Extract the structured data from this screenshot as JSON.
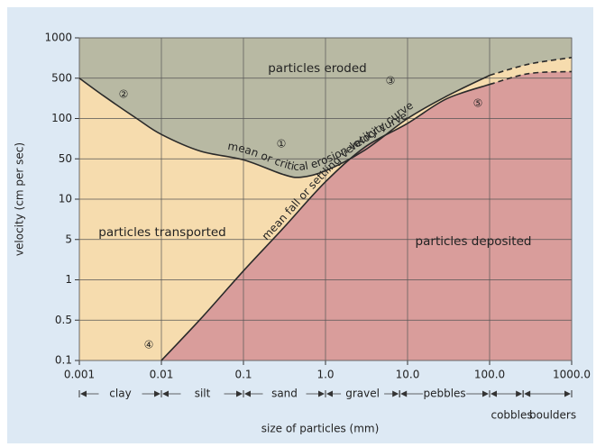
{
  "chart_data": {
    "type": "hjulstrom",
    "xlabel": "size of particles (mm)",
    "ylabel": "velocity (cm per sec)",
    "xscale": "log",
    "yscale": "log",
    "xlim": [
      0.001,
      1000
    ],
    "ylim": [
      0.1,
      1000
    ],
    "xticks": [
      0.001,
      0.01,
      0.1,
      {
        "value": 1,
        "label": "1.0"
      },
      {
        "value": 10,
        "label": "10.0"
      },
      {
        "value": 100,
        "label": "100.0"
      },
      {
        "value": 1000,
        "label": "1000.0"
      }
    ],
    "yticks": [
      1000,
      500,
      100,
      50,
      10,
      5,
      1,
      0.5,
      0.1
    ],
    "grid": true,
    "dash_from": 100,
    "regions": [
      {
        "name": "particles eroded",
        "color": "#b8b9a3"
      },
      {
        "name": "particles transported",
        "color": "#f6dcae"
      },
      {
        "name": "particles deposited",
        "color": "#d99d9b"
      }
    ],
    "series": [
      {
        "name": "mean or critical erosion velocity curve",
        "color": "#2a2a2a",
        "x": [
          0.001,
          0.002,
          0.005,
          0.01,
          0.03,
          0.1,
          0.3,
          0.5,
          1,
          3,
          10,
          30,
          100,
          300,
          1000
        ],
        "values": [
          500,
          244,
          100,
          76,
          57,
          48,
          27,
          24,
          31,
          58,
          100,
          244,
          525,
          636,
          713
        ]
      },
      {
        "name": "mean fall or settling velocity curve",
        "color": "#2a2a2a",
        "x": [
          0.01,
          0.03,
          0.1,
          0.3,
          1,
          3,
          10,
          30,
          100,
          300,
          1000
        ],
        "values": [
          0.1,
          0.51,
          1.43,
          6.0,
          20,
          61,
          92,
          220,
          390,
          541,
          560
        ]
      }
    ],
    "annotations": [
      "①",
      "②",
      "③",
      "④",
      "⑤"
    ],
    "size_classes": [
      {
        "name": "clay",
        "range": [
          0.001,
          0.01
        ]
      },
      {
        "name": "silt",
        "range": [
          0.01,
          0.1
        ]
      },
      {
        "name": "sand",
        "range": [
          0.1,
          1
        ]
      },
      {
        "name": "gravel",
        "range": [
          1,
          8
        ]
      },
      {
        "name": "pebbles",
        "range": [
          8,
          100
        ]
      },
      {
        "name": "cobbles",
        "range": [
          100,
          256
        ]
      },
      {
        "name": "boulders",
        "range": [
          256,
          1000
        ]
      }
    ]
  }
}
